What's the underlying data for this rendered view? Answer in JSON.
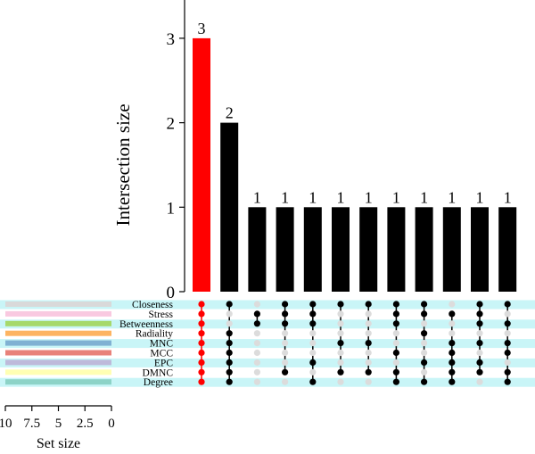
{
  "chart_data": {
    "type": "bar",
    "ylabel": "Intersection size",
    "ylim": [
      0,
      3
    ],
    "y_ticks": [
      0,
      1,
      2,
      3
    ],
    "bar_values": [
      3,
      2,
      1,
      1,
      1,
      1,
      1,
      1,
      1,
      1,
      1,
      1
    ],
    "bar_labels": [
      "3",
      "2",
      "1",
      "1",
      "1",
      "1",
      "1",
      "1",
      "1",
      "1",
      "1",
      "1"
    ],
    "highlight_bar_index": 0,
    "sets": [
      "Closeness",
      "Stress",
      "Betweenness",
      "Radiality",
      "MNC",
      "MCC",
      "EPC",
      "DMNC",
      "Degree"
    ],
    "set_sizes": [
      10,
      10,
      10,
      10,
      10,
      10,
      10,
      10,
      10
    ],
    "set_colors": [
      "#d9d9d9",
      "#f9c9e0",
      "#a6d96a",
      "#fdb462",
      "#80b1d3",
      "#e8827a",
      "#bebada",
      "#ffffb3",
      "#8dd3c7"
    ],
    "set_size_axis": {
      "label": "Set size",
      "max": 10,
      "ticks": [
        10,
        7.5,
        5,
        2.5,
        0
      ],
      "tick_labels": [
        "10",
        "7.5",
        "5",
        "2.5",
        "0"
      ]
    },
    "matrix": [
      [
        1,
        1,
        1,
        1,
        1,
        1,
        1,
        1,
        1
      ],
      [
        1,
        0,
        0,
        1,
        1,
        1,
        1,
        1,
        1
      ],
      [
        0,
        1,
        1,
        0,
        0,
        0,
        0,
        0,
        0
      ],
      [
        1,
        1,
        1,
        0,
        0,
        0,
        0,
        1,
        0
      ],
      [
        1,
        1,
        1,
        0,
        0,
        0,
        1,
        0,
        1
      ],
      [
        1,
        0,
        0,
        0,
        1,
        0,
        0,
        1,
        0
      ],
      [
        1,
        0,
        0,
        0,
        1,
        0,
        0,
        1,
        0
      ],
      [
        1,
        1,
        1,
        0,
        0,
        1,
        0,
        1,
        1
      ],
      [
        1,
        1,
        0,
        1,
        0,
        0,
        1,
        0,
        1
      ],
      [
        0,
        1,
        0,
        0,
        1,
        1,
        1,
        1,
        1
      ],
      [
        1,
        1,
        1,
        0,
        1,
        0,
        1,
        1,
        0
      ],
      [
        1,
        0,
        1,
        0,
        1,
        1,
        0,
        1,
        1
      ]
    ],
    "colors": {
      "highlight": "#ff0000",
      "bar": "#000000",
      "dot_active": "#000000",
      "dot_inactive": "#dcdcdc",
      "row_stripe": "#c9f5f7"
    },
    "grid": false
  }
}
